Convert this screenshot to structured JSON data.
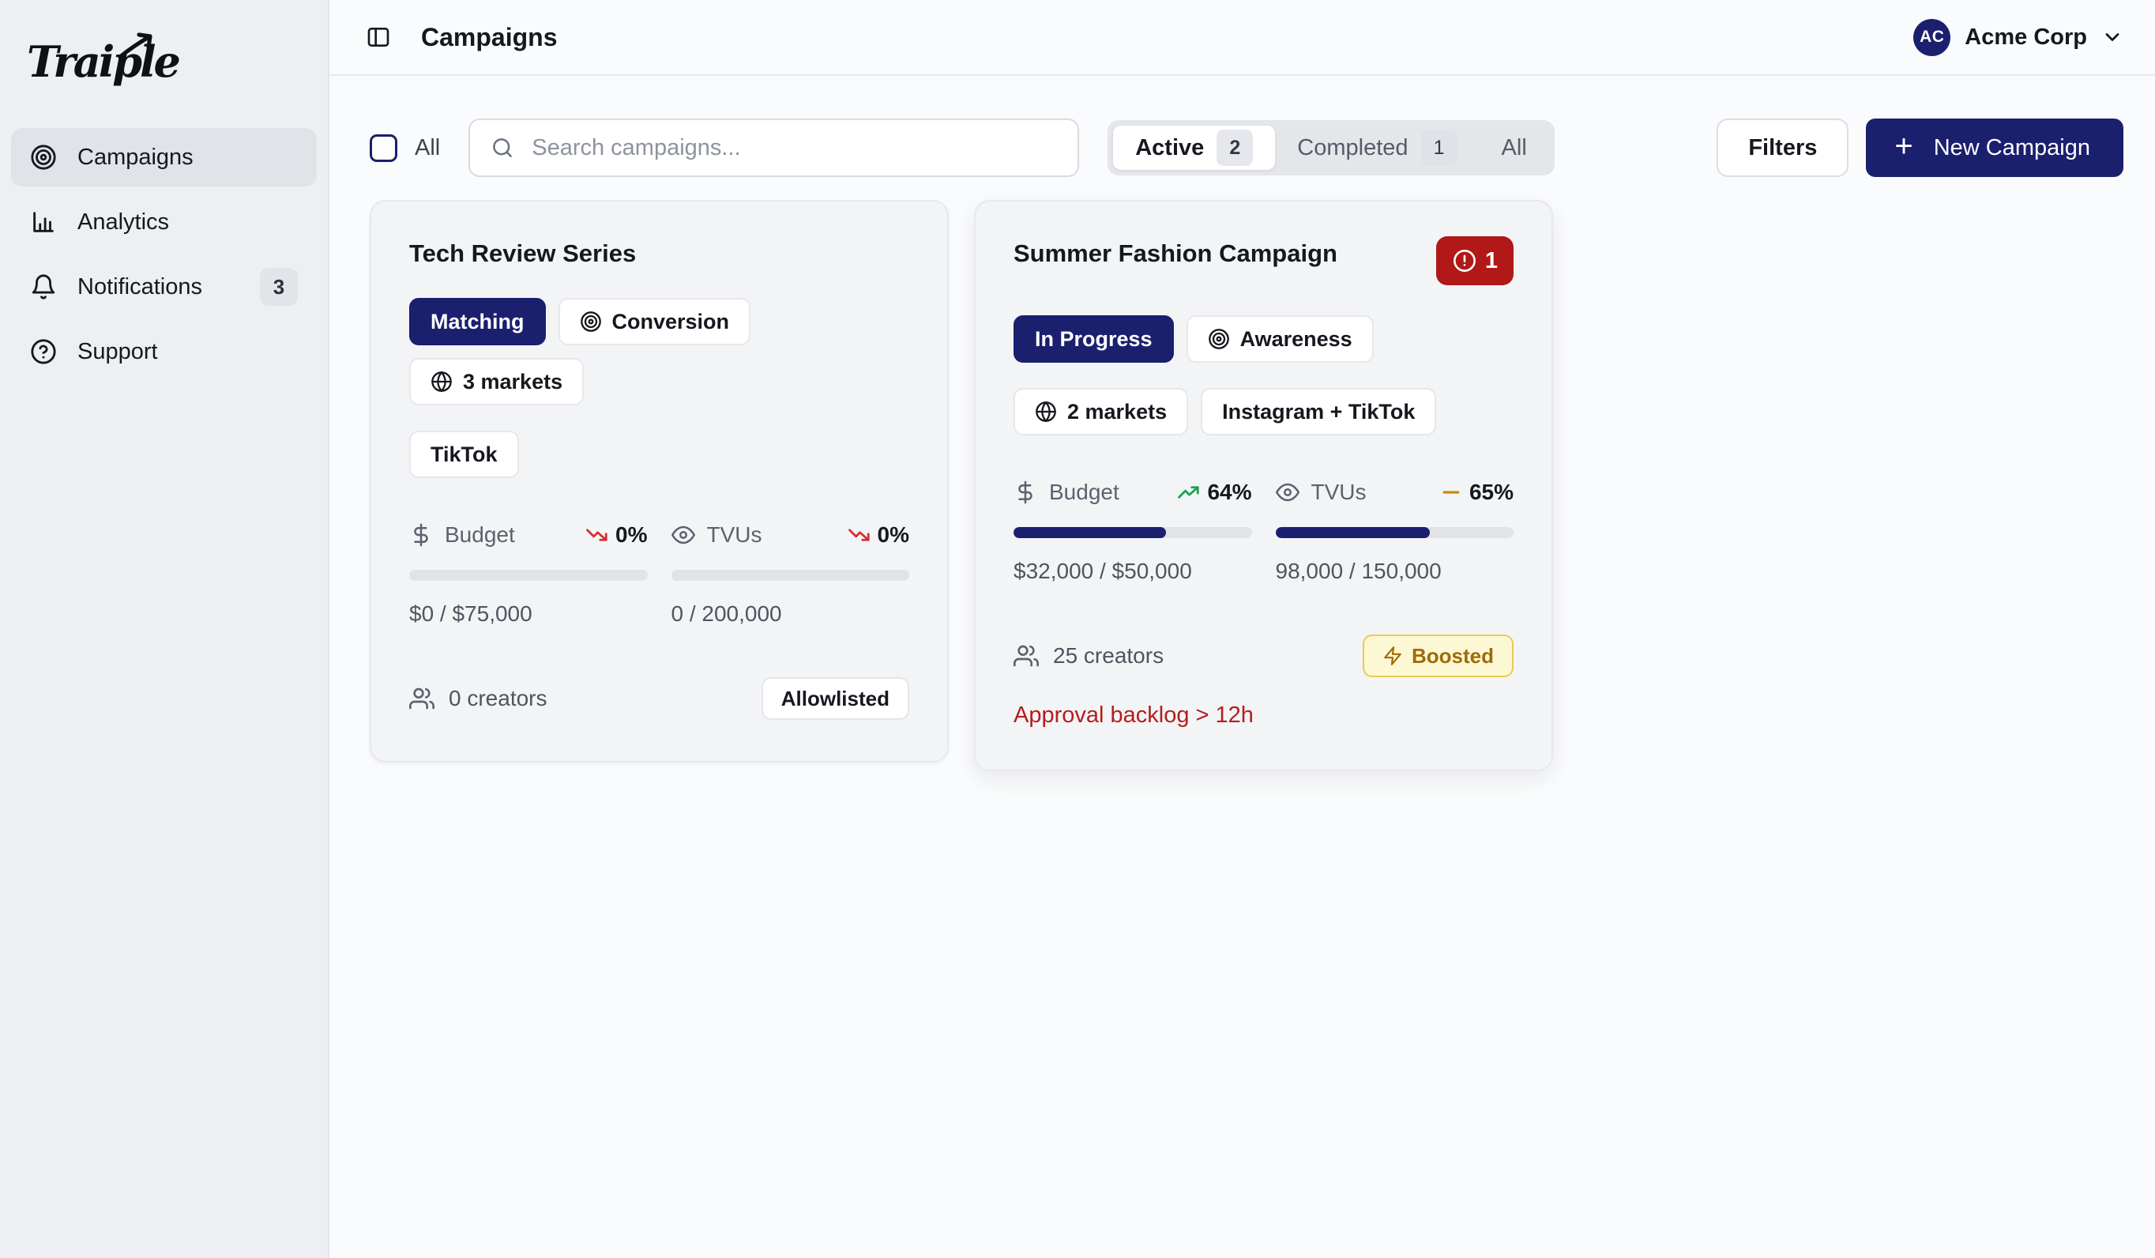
{
  "brand": {
    "logo_text": "Traiple"
  },
  "sidebar": {
    "items": [
      {
        "label": "Campaigns",
        "icon": "target-icon",
        "active": true
      },
      {
        "label": "Analytics",
        "icon": "bar-chart-icon"
      },
      {
        "label": "Notifications",
        "icon": "bell-icon",
        "badge": "3"
      },
      {
        "label": "Support",
        "icon": "help-circle-icon"
      }
    ]
  },
  "header": {
    "title": "Campaigns",
    "account": {
      "initials": "AC",
      "name": "Acme Corp"
    }
  },
  "toolbar": {
    "select_all_label": "All",
    "search_placeholder": "Search campaigns...",
    "tabs": [
      {
        "label": "Active",
        "count": "2",
        "active": true
      },
      {
        "label": "Completed",
        "count": "1"
      },
      {
        "label": "All"
      }
    ],
    "filters_label": "Filters",
    "new_campaign_plus": "+",
    "new_campaign_label": "New Campaign"
  },
  "cards": [
    {
      "title": "Tech Review Series",
      "badges": [
        {
          "label": "Matching",
          "variant": "solid"
        },
        {
          "label": "Conversion",
          "icon": "target-icon"
        },
        {
          "label": "3 markets",
          "icon": "globe-icon"
        },
        {
          "label": "TikTok"
        }
      ],
      "metrics": [
        {
          "label": "Budget",
          "icon": "dollar-icon",
          "trend": "down",
          "trend_value": "0%",
          "progress": 0,
          "value": "$0 / $75,000"
        },
        {
          "label": "TVUs",
          "icon": "eye-icon",
          "trend": "down",
          "trend_value": "0%",
          "progress": 0,
          "value": "0 / 200,000"
        }
      ],
      "creators": "0 creators",
      "tag": {
        "label": "Allowlisted",
        "variant": "neutral"
      }
    },
    {
      "title": "Summer Fashion Campaign",
      "alert_count": "1",
      "badges": [
        {
          "label": "In Progress",
          "variant": "solid"
        },
        {
          "label": "Awareness",
          "icon": "target-icon"
        },
        {
          "label": "2 markets",
          "icon": "globe-icon"
        },
        {
          "label": "Instagram + TikTok"
        }
      ],
      "metrics": [
        {
          "label": "Budget",
          "icon": "dollar-icon",
          "trend": "up",
          "trend_value": "64%",
          "progress": 64,
          "value": "$32,000 / $50,000"
        },
        {
          "label": "TVUs",
          "icon": "eye-icon",
          "trend": "flat",
          "trend_value": "65%",
          "progress": 65,
          "value": "98,000 / 150,000"
        }
      ],
      "creators": "25 creators",
      "tag": {
        "label": "Boosted",
        "variant": "boosted",
        "icon": "zap-icon"
      },
      "warning": "Approval backlog > 12h"
    }
  ],
  "icons": [
    "logo-arrow-icon",
    "target-icon",
    "bar-chart-icon",
    "bell-icon",
    "help-circle-icon",
    "panel-left-icon",
    "chevron-down-icon",
    "search-icon",
    "plus-icon",
    "dollar-icon",
    "eye-icon",
    "trending-down-icon",
    "trending-up-icon",
    "minus-icon",
    "users-icon",
    "globe-icon",
    "alert-circle-icon",
    "zap-icon"
  ],
  "colors": {
    "accent_navy": "#1a1f6e",
    "sidebar_bg": "#edeff2",
    "card_bg": "#f3f4f6",
    "alert_red": "#b11818",
    "warning_text": "#b51d1d",
    "trend_down": "#d92d2d",
    "trend_up": "#18a24b",
    "trend_flat": "#c8890a",
    "boosted_bg": "#fdf8d4",
    "boosted_border": "#e9cb50",
    "boosted_text": "#a16a08"
  }
}
